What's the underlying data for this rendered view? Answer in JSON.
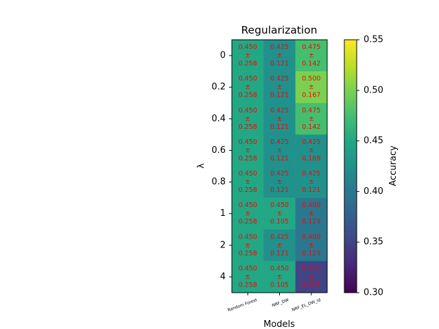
{
  "chart_data": {
    "type": "heatmap",
    "title": "Regularization",
    "xlabel": "Models",
    "ylabel": "λ",
    "x_categories": [
      "Random Forest",
      "NRF_DW",
      "NRF_EL_DW_ld"
    ],
    "y_categories": [
      "0",
      "0.2",
      "0.4",
      "0.6",
      "0.8",
      "1",
      "2",
      "4"
    ],
    "values": [
      [
        0.45,
        0.425,
        0.475
      ],
      [
        0.45,
        0.425,
        0.5
      ],
      [
        0.45,
        0.425,
        0.475
      ],
      [
        0.45,
        0.425,
        0.425
      ],
      [
        0.45,
        0.425,
        0.425
      ],
      [
        0.45,
        0.45,
        0.4
      ],
      [
        0.45,
        0.425,
        0.4
      ],
      [
        0.45,
        0.45,
        0.35
      ]
    ],
    "std": [
      [
        0.258,
        0.121,
        0.142
      ],
      [
        0.258,
        0.121,
        0.167
      ],
      [
        0.258,
        0.121,
        0.142
      ],
      [
        0.258,
        0.121,
        0.169
      ],
      [
        0.258,
        0.121,
        0.121
      ],
      [
        0.258,
        0.105,
        0.129
      ],
      [
        0.258,
        0.121,
        0.129
      ],
      [
        0.258,
        0.105,
        0.075
      ]
    ],
    "colorbar": {
      "label": "Accuracy",
      "colormap": "viridis",
      "vmin": 0.3,
      "vmax": 0.55,
      "ticks": [
        "0.30",
        "0.35",
        "0.40",
        "0.45",
        "0.50",
        "0.55"
      ]
    },
    "annotation_color": "#ff0000"
  }
}
